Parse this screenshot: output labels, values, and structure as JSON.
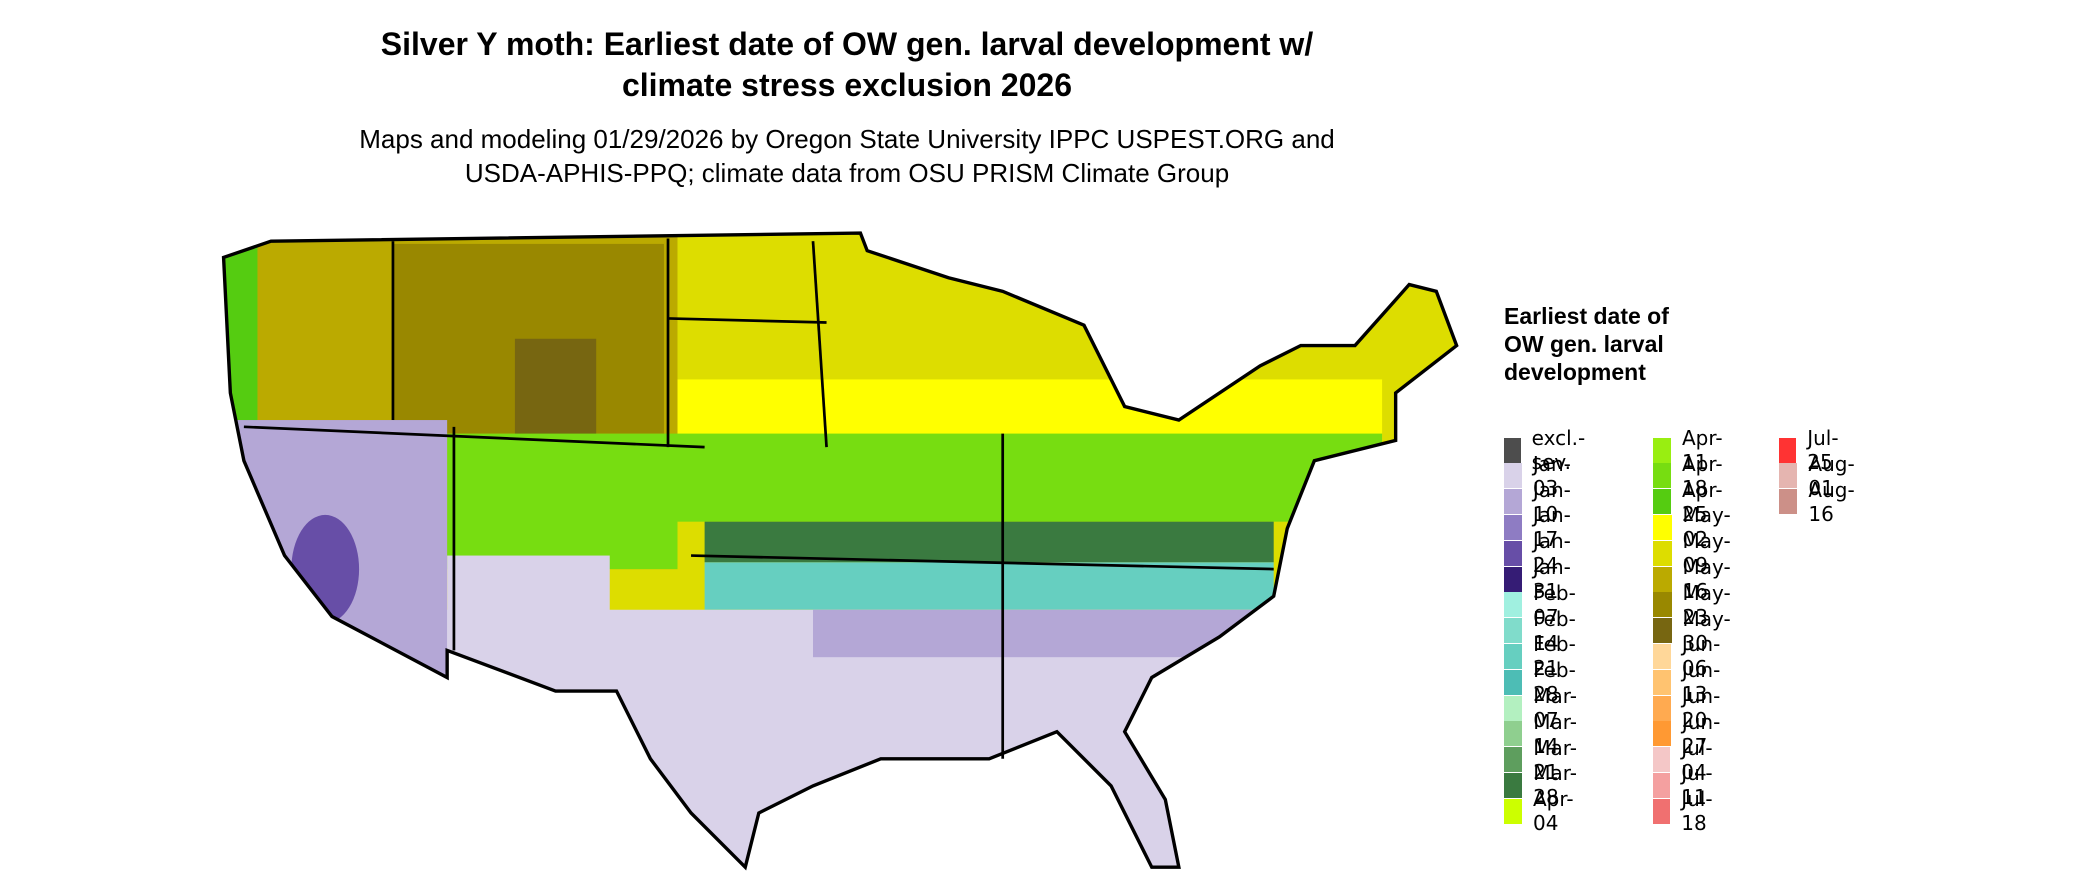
{
  "title": "Silver Y moth: Earliest date of OW gen. larval development w/ climate stress exclusion 2026",
  "subtitle": "Maps and modeling 01/29/2026 by Oregon State University IPPC USPEST.ORG and USDA-APHIS-PPQ; climate data from OSU PRISM Climate Group",
  "legend": {
    "title": "Earliest date of OW gen. larval development",
    "items": [
      {
        "label": "excl.-sev.",
        "color": "#4d4d4d"
      },
      {
        "label": "Jan-03",
        "color": "#d9d2e9"
      },
      {
        "label": "Jan-10",
        "color": "#b4a7d6"
      },
      {
        "label": "Jan-17",
        "color": "#8e7cc3"
      },
      {
        "label": "Jan-24",
        "color": "#674ea7"
      },
      {
        "label": "Jan-31",
        "color": "#351c75"
      },
      {
        "label": "Feb-07",
        "color": "#a0f0e0"
      },
      {
        "label": "Feb-14",
        "color": "#80dccb"
      },
      {
        "label": "Feb-21",
        "color": "#66cfc0"
      },
      {
        "label": "Feb-28",
        "color": "#4dbdb5"
      },
      {
        "label": "Mar-07",
        "color": "#b3f0c0"
      },
      {
        "label": "Mar-14",
        "color": "#8fcf8f"
      },
      {
        "label": "Mar-21",
        "color": "#5e9e5e"
      },
      {
        "label": "Mar-28",
        "color": "#3a7a40"
      },
      {
        "label": "Apr-04",
        "color": "#ccff00"
      },
      {
        "label": "Apr-11",
        "color": "#99ee11"
      },
      {
        "label": "Apr-18",
        "color": "#77dd11"
      },
      {
        "label": "Apr-25",
        "color": "#55cc11"
      },
      {
        "label": "May-02",
        "color": "#ffff00"
      },
      {
        "label": "May-09",
        "color": "#dddd00"
      },
      {
        "label": "May-16",
        "color": "#bbaa00"
      },
      {
        "label": "May-23",
        "color": "#998800"
      },
      {
        "label": "May-30",
        "color": "#776611"
      },
      {
        "label": "Jun-06",
        "color": "#ffd799"
      },
      {
        "label": "Jun-13",
        "color": "#ffc370"
      },
      {
        "label": "Jun-20",
        "color": "#ffaa50"
      },
      {
        "label": "Jun-27",
        "color": "#ff9933"
      },
      {
        "label": "Jul-04",
        "color": "#f4c7c7"
      },
      {
        "label": "Jul-11",
        "color": "#f4a0a0"
      },
      {
        "label": "Jul-18",
        "color": "#f07070"
      },
      {
        "label": "Jul-25",
        "color": "#ff3333"
      },
      {
        "label": "Aug-01",
        "color": "#e5b5b0"
      },
      {
        "label": "Aug-16",
        "color": "#cc9088"
      }
    ]
  }
}
